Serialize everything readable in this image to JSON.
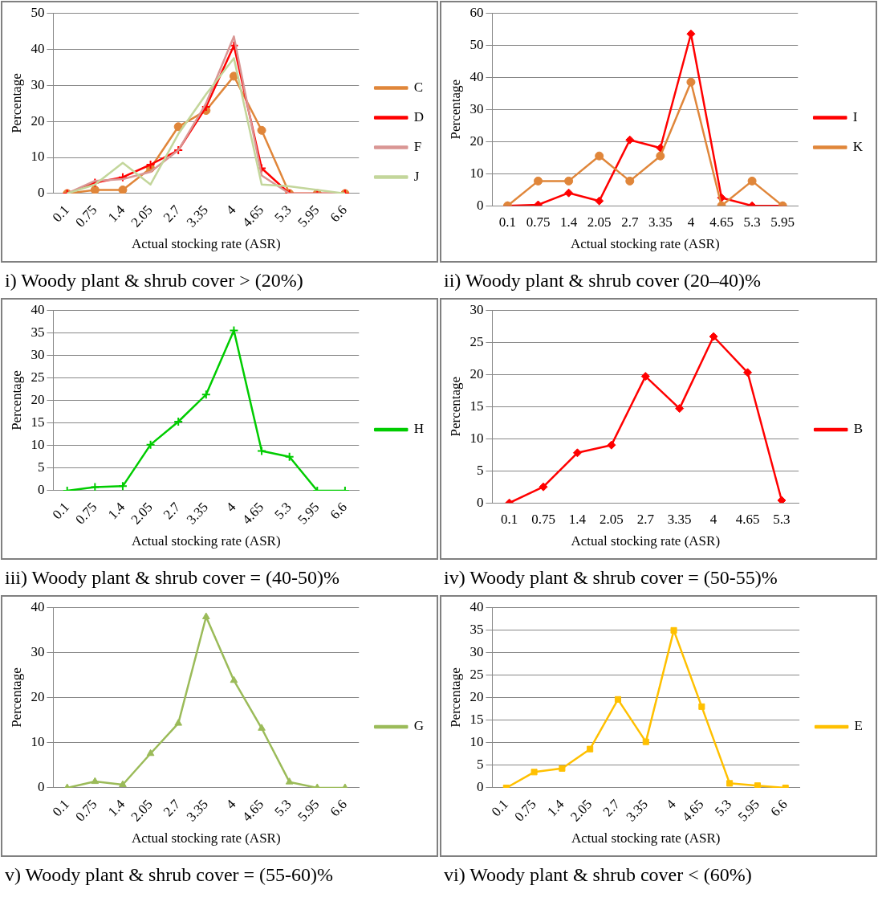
{
  "chart_data": [
    {
      "type": "line",
      "title": "i) Woody plant & shrub cover > (20%)",
      "xlabel": "Actual stocking rate (ASR)",
      "ylabel": "Percentage",
      "categories": [
        "0.1",
        "0.75",
        "1.4",
        "2.05",
        "2.7",
        "3.35",
        "4",
        "4.65",
        "5.3",
        "5.95",
        "6.6"
      ],
      "ylim": [
        0,
        50
      ],
      "yticks": [
        0,
        10,
        20,
        30,
        40,
        50
      ],
      "grid": "y",
      "legend": "right",
      "series": [
        {
          "name": "C",
          "color": "#e0863a",
          "marker": "circle",
          "values": [
            0,
            1,
            1,
            7,
            18.5,
            23,
            32.5,
            17.5,
            0,
            0,
            0
          ]
        },
        {
          "name": "D",
          "color": "#ff0000",
          "marker": "cross",
          "values": [
            0,
            3,
            4.5,
            8,
            12,
            24,
            41,
            7,
            0,
            0,
            0
          ]
        },
        {
          "name": "F",
          "color": "#d99694",
          "marker": "none",
          "values": [
            0,
            3.5,
            4,
            6,
            12,
            25,
            43.5,
            5,
            0,
            0,
            0
          ]
        },
        {
          "name": "J",
          "color": "#c3d69b",
          "marker": "none",
          "values": [
            0,
            2.5,
            8.5,
            2.5,
            16.5,
            27.5,
            37.5,
            2.5,
            2,
            1,
            0
          ]
        }
      ]
    },
    {
      "type": "line",
      "title": "ii) Woody plant & shrub cover (20–40)%",
      "xlabel": "Actual stocking rate (ASR)",
      "ylabel": "Percentage",
      "categories": [
        "0.1",
        "0.75",
        "1.4",
        "2.05",
        "2.7",
        "3.35",
        "4",
        "4.65",
        "5.3",
        "5.95"
      ],
      "ylim": [
        0,
        60
      ],
      "yticks": [
        0,
        10,
        20,
        30,
        40,
        50,
        60
      ],
      "grid": "y",
      "legend": "right",
      "series": [
        {
          "name": "I",
          "color": "#ff0000",
          "marker": "diamond",
          "values": [
            0,
            0.3,
            4,
            1.5,
            20.5,
            18,
            53.5,
            2.5,
            0,
            0
          ]
        },
        {
          "name": "K",
          "color": "#e0863a",
          "marker": "circle",
          "values": [
            0,
            7.7,
            7.7,
            15.5,
            7.7,
            15.5,
            38.5,
            0,
            7.7,
            0
          ]
        }
      ]
    },
    {
      "type": "line",
      "title": "iii) Woody plant & shrub cover = (40-50)%",
      "xlabel": "Actual stocking rate (ASR)",
      "ylabel": "Percentage",
      "categories": [
        "0.1",
        "0.75",
        "1.4",
        "2.05",
        "2.7",
        "3.35",
        "4",
        "4.65",
        "5.3",
        "5.95",
        "6.6"
      ],
      "ylim": [
        0,
        40
      ],
      "yticks": [
        0,
        5,
        10,
        15,
        20,
        25,
        30,
        35,
        40
      ],
      "grid": "y",
      "legend": "right",
      "series": [
        {
          "name": "H",
          "color": "#00cc00",
          "marker": "cross",
          "values": [
            0,
            0.8,
            1,
            10.2,
            15.3,
            21.3,
            35.5,
            8.8,
            7.5,
            0,
            0
          ]
        }
      ]
    },
    {
      "type": "line",
      "title": "iv) Woody plant & shrub cover = (50-55)%",
      "xlabel": "Actual stocking rate (ASR)",
      "ylabel": "Percentage",
      "categories": [
        "0.1",
        "0.75",
        "1.4",
        "2.05",
        "2.7",
        "3.35",
        "4",
        "4.65",
        "5.3"
      ],
      "ylim": [
        0,
        30
      ],
      "yticks": [
        0,
        5,
        10,
        15,
        20,
        25,
        30
      ],
      "grid": "y",
      "legend": "right",
      "series": [
        {
          "name": "B",
          "color": "#ff0000",
          "marker": "diamond",
          "values": [
            0,
            2.5,
            7.8,
            9,
            19.7,
            14.7,
            25.9,
            20.3,
            0.4
          ]
        }
      ]
    },
    {
      "type": "line",
      "title": "v) Woody plant & shrub cover = (55-60)%",
      "xlabel": "Actual stocking rate (ASR)",
      "ylabel": "Percentage",
      "categories": [
        "0.1",
        "0.75",
        "1.4",
        "2.05",
        "2.7",
        "3.35",
        "4",
        "4.65",
        "5.3",
        "5.95",
        "6.6"
      ],
      "ylim": [
        0,
        40
      ],
      "yticks": [
        0,
        10,
        20,
        30,
        40
      ],
      "grid": "y",
      "legend": "right",
      "series": [
        {
          "name": "G",
          "color": "#9bbb59",
          "marker": "triangle",
          "values": [
            0,
            1.4,
            0.7,
            7.6,
            14.3,
            37.9,
            23.8,
            13.2,
            1.3,
            0,
            0
          ]
        }
      ]
    },
    {
      "type": "line",
      "title": "vi) Woody plant & shrub cover < (60%)",
      "xlabel": "Actual stocking rate (ASR)",
      "ylabel": "Percentage",
      "categories": [
        "0.1",
        "0.75",
        "1.4",
        "2.05",
        "2.7",
        "3.35",
        "4",
        "4.65",
        "5.3",
        "5.95",
        "6.6"
      ],
      "ylim": [
        0,
        40
      ],
      "yticks": [
        0,
        5,
        10,
        15,
        20,
        25,
        30,
        35,
        40
      ],
      "grid": "y",
      "legend": "right",
      "series": [
        {
          "name": "E",
          "color": "#ffc000",
          "marker": "square",
          "values": [
            0,
            3.5,
            4.3,
            8.6,
            19.6,
            10.2,
            34.9,
            18,
            1,
            0.5,
            0
          ]
        }
      ]
    }
  ]
}
